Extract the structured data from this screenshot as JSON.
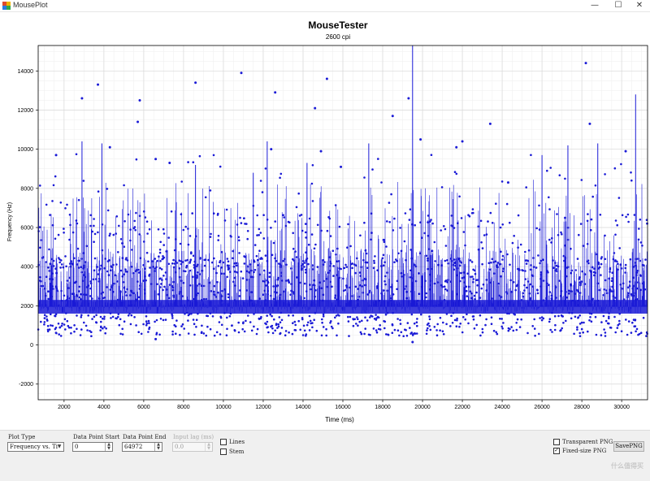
{
  "window": {
    "title": "MousePlot",
    "controls": {
      "minimize": "—",
      "maximize": "☐",
      "close": "✕"
    }
  },
  "chart_data": {
    "type": "scatter",
    "title": "MouseTester",
    "subtitle": "2600 cpi",
    "xlabel": "Time (ms)",
    "ylabel": "Frequency (Hz)",
    "xlim": [
      700,
      31300
    ],
    "ylim": [
      -2800,
      15300
    ],
    "x_ticks": [
      "2000",
      "4000",
      "6000",
      "8000",
      "10000",
      "12000",
      "14000",
      "16000",
      "18000",
      "20000",
      "22000",
      "24000",
      "26000",
      "28000",
      "30000"
    ],
    "y_ticks": [
      "-2000",
      "0",
      "2000",
      "4000",
      "6000",
      "8000",
      "10000",
      "12000",
      "14000"
    ],
    "grid": true,
    "series_color": "#1a1ad6",
    "baseline_hz": 1950,
    "outliers": [
      {
        "x": 3700,
        "y": 13300
      },
      {
        "x": 2900,
        "y": 12600
      },
      {
        "x": 5800,
        "y": 12500
      },
      {
        "x": 5700,
        "y": 11400
      },
      {
        "x": 8600,
        "y": 13400
      },
      {
        "x": 10900,
        "y": 13900
      },
      {
        "x": 12600,
        "y": 12900
      },
      {
        "x": 14600,
        "y": 12100
      },
      {
        "x": 15200,
        "y": 13600
      },
      {
        "x": 18500,
        "y": 11700
      },
      {
        "x": 19300,
        "y": 12600
      },
      {
        "x": 23400,
        "y": 11300
      },
      {
        "x": 28200,
        "y": 14400
      },
      {
        "x": 28400,
        "y": 11300
      },
      {
        "x": 1600,
        "y": 9700
      },
      {
        "x": 4300,
        "y": 10100
      },
      {
        "x": 12400,
        "y": 10000
      },
      {
        "x": 14900,
        "y": 9900
      },
      {
        "x": 19900,
        "y": 10500
      },
      {
        "x": 21700,
        "y": 10100
      },
      {
        "x": 22000,
        "y": 10400
      },
      {
        "x": 30200,
        "y": 9900
      },
      {
        "x": 6600,
        "y": 9500
      },
      {
        "x": 7300,
        "y": 9300
      },
      {
        "x": 15900,
        "y": 9100
      },
      {
        "x": 24300,
        "y": 8300
      },
      {
        "x": 6600,
        "y": 300
      },
      {
        "x": 19500,
        "y": 150
      }
    ],
    "spikes": [
      {
        "x": 2900,
        "y": 10400
      },
      {
        "x": 3900,
        "y": 10300
      },
      {
        "x": 19500,
        "y": 15300
      },
      {
        "x": 30700,
        "y": 12800
      },
      {
        "x": 12200,
        "y": 10400
      },
      {
        "x": 17300,
        "y": 10300
      },
      {
        "x": 8600,
        "y": 9200
      },
      {
        "x": 14200,
        "y": 9300
      },
      {
        "x": 27300,
        "y": 10200
      },
      {
        "x": 28800,
        "y": 10300
      },
      {
        "x": 26000,
        "y": 9700
      },
      {
        "x": 11500,
        "y": 8800
      }
    ]
  },
  "controls": {
    "plot_type": {
      "label": "Plot Type",
      "value": "Frequency vs. Ti"
    },
    "data_point_start": {
      "label": "Data Point Start",
      "value": "0"
    },
    "data_point_end": {
      "label": "Data Point End",
      "value": "64972"
    },
    "input_lag": {
      "label": "Input lag (ms)",
      "value": "0.0"
    },
    "lines": {
      "label": "Lines",
      "checked": false
    },
    "stem": {
      "label": "Stem",
      "checked": false
    },
    "transparent_png": {
      "label": "Transparent PNG",
      "checked": false
    },
    "fixed_size_png": {
      "label": "Fixed-size PNG",
      "checked": true
    },
    "save_png": {
      "label": "SavePNG"
    }
  },
  "watermark": "什么值得买"
}
